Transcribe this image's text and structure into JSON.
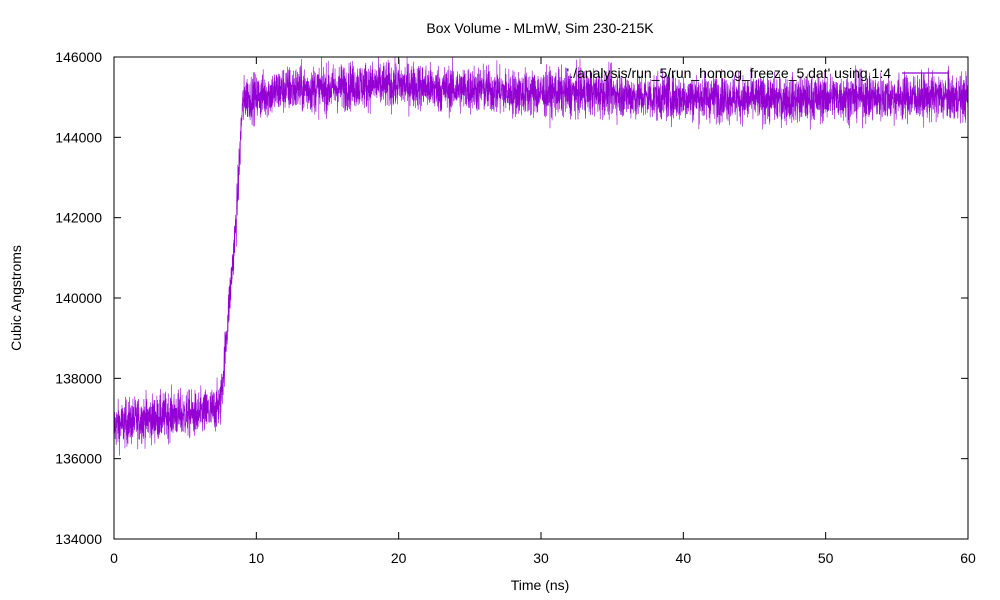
{
  "chart_data": {
    "type": "line",
    "title": "Box Volume - MLmW, Sim 230-215K",
    "xlabel": "Time (ns)",
    "ylabel": "Cubic Angstroms",
    "xlim": [
      0,
      60
    ],
    "ylim": [
      134000,
      146000
    ],
    "xticks": [
      0,
      10,
      20,
      30,
      40,
      50,
      60
    ],
    "yticks": [
      134000,
      136000,
      138000,
      140000,
      142000,
      144000,
      146000
    ],
    "x_tick_labels": [
      "0",
      "10",
      "20",
      "30",
      "40",
      "50",
      "60"
    ],
    "y_tick_labels": [
      "134000",
      "136000",
      "138000",
      "140000",
      "142000",
      "144000",
      "146000"
    ],
    "grid": false,
    "legend_position": "top-right",
    "series": [
      {
        "name": "'./analysis/run_5/run_homog_freeze_5.dat' using 1:4",
        "color": "#9400d3",
        "noise_amplitude": 1000,
        "x": [
          0,
          1,
          2,
          3,
          4,
          5,
          6,
          7,
          7.5,
          7.7,
          8,
          8.3,
          8.6,
          8.8,
          9,
          9.2,
          9.5,
          10,
          11,
          12,
          13,
          14,
          15,
          16,
          17,
          18,
          19,
          20,
          21,
          22,
          23,
          24,
          25,
          26,
          27,
          28,
          29,
          30,
          31,
          32,
          33,
          34,
          35,
          36,
          37,
          38,
          39,
          40,
          41,
          42,
          43,
          44,
          45,
          46,
          47,
          48,
          49,
          50,
          51,
          52,
          53,
          54,
          55,
          56,
          57,
          58,
          59,
          60
        ],
        "y": [
          136800,
          136900,
          137000,
          137000,
          137100,
          137100,
          137100,
          137200,
          137400,
          138200,
          139500,
          140700,
          142000,
          143300,
          144700,
          145000,
          145000,
          145000,
          145100,
          145200,
          145200,
          145200,
          145200,
          145250,
          145300,
          145300,
          145300,
          145300,
          145300,
          145250,
          145200,
          145200,
          145200,
          145200,
          145150,
          145100,
          145100,
          145100,
          145100,
          145100,
          145100,
          145100,
          145100,
          145050,
          145000,
          145000,
          145000,
          145000,
          145000,
          145000,
          145000,
          144950,
          144950,
          144950,
          144950,
          144950,
          144950,
          145000,
          145000,
          145000,
          145000,
          145000,
          145000,
          145000,
          145000,
          145000,
          145000,
          145000
        ]
      }
    ]
  }
}
